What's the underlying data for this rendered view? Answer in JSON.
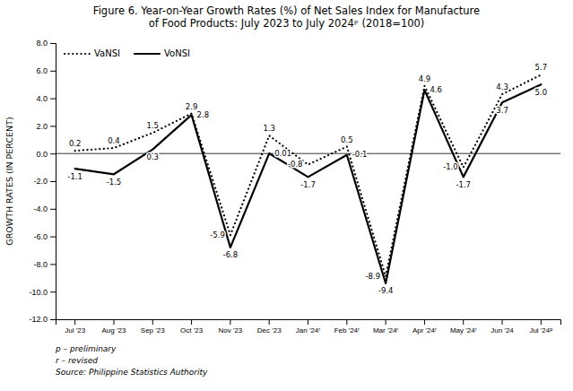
{
  "chart_data": {
    "type": "line",
    "title": "Figure 6. Year-on-Year Growth Rates (%) of Net Sales Index for Manufacture\nof Food Products: July 2023 to July 2024ᵖ (2018=100)",
    "ylabel": "GROWTH RATES (IN PERCENT)",
    "categories": [
      "Jul '23",
      "Aug '23",
      "Sep '23",
      "Oct '23",
      "Nov '23",
      "Dec '23",
      "Jan '24ʳ",
      "Feb '24ʳ",
      "Mar '24ʳ",
      "Apr '24ʳ",
      "May '24ʳ",
      "Jun '24",
      "Jul '24ᵖ"
    ],
    "series": [
      {
        "name": "VaNSI",
        "color": "#000000",
        "line_style": "dotted",
        "values": [
          0.2,
          0.4,
          1.5,
          2.9,
          -5.9,
          1.3,
          -0.8,
          0.5,
          -8.9,
          4.9,
          -1.0,
          4.3,
          5.7
        ],
        "value_labels": [
          "0.2",
          "0.4",
          "1.5",
          "2.9",
          "-5.9",
          "1.3",
          "-0.8",
          "0.5",
          "-8.9",
          "4.9",
          "-1.0",
          "4.3",
          "5.7"
        ]
      },
      {
        "name": "VoNSI",
        "color": "#000000",
        "line_style": "solid",
        "values": [
          -1.1,
          -1.5,
          0.3,
          2.8,
          -6.8,
          0.01,
          -1.7,
          -0.1,
          -9.4,
          4.6,
          -1.7,
          3.7,
          5.0
        ],
        "value_labels": [
          "-1.1",
          "-1.5",
          "0.3",
          "2.8",
          "-6.8",
          "0.01",
          "-1.7",
          "-0.1",
          "-9.4",
          "4.6",
          "-1.7",
          "3.7",
          "5.0"
        ]
      }
    ],
    "ylim": [
      -12.0,
      8.0
    ],
    "yticks": [
      {
        "value": -12.0,
        "label": "-12.0"
      },
      {
        "value": -10.0,
        "label": "-10.0"
      },
      {
        "value": -8.0,
        "label": "-8.0"
      },
      {
        "value": -6.0,
        "label": "-6.0"
      },
      {
        "value": -4.0,
        "label": "-4.0"
      },
      {
        "value": -2.0,
        "label": "-2.0"
      },
      {
        "value": 0.0,
        "label": "0.0"
      },
      {
        "value": 2.0,
        "label": "2.0"
      },
      {
        "value": 4.0,
        "label": "4.0"
      },
      {
        "value": 6.0,
        "label": "6.0"
      },
      {
        "value": 8.0,
        "label": "8.0"
      }
    ],
    "data_labels": true,
    "legend": "upper left",
    "grid": false,
    "footnote": "p – preliminary\nr – revised\nSource: Philippine Statistics Authority"
  }
}
